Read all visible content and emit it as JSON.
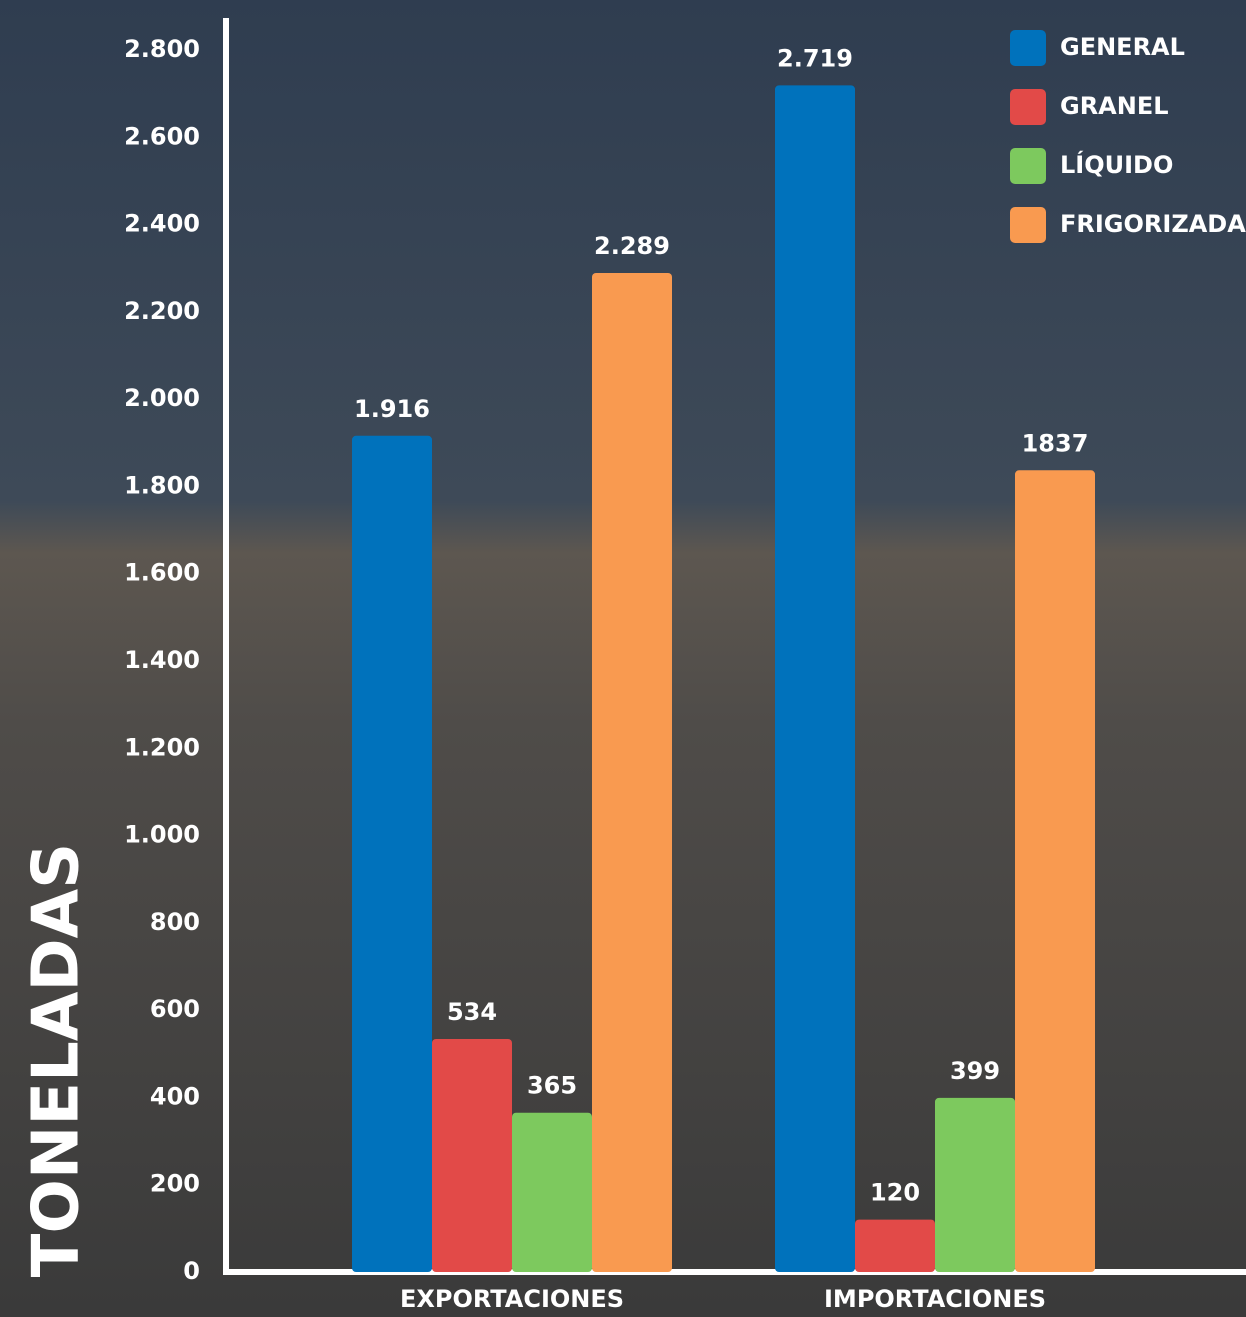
{
  "chart_data": {
    "type": "bar",
    "ylabel": "TONELADAS",
    "categories": [
      "EXPORTACIONES",
      "IMPORTACIONES"
    ],
    "series": [
      {
        "name": "GENERAL",
        "color": "#0072bc",
        "values": [
          1916,
          2719
        ],
        "value_labels": [
          "1.916",
          "2.719"
        ]
      },
      {
        "name": "GRANEL",
        "color": "#e24a48",
        "values": [
          534,
          120
        ],
        "value_labels": [
          "534",
          "120"
        ]
      },
      {
        "name": "LÍQUIDO",
        "color": "#7dc95e",
        "values": [
          365,
          399
        ],
        "value_labels": [
          "365",
          "399"
        ]
      },
      {
        "name": "FRIGORIZADA",
        "color": "#f99a50",
        "values": [
          2289,
          1837
        ],
        "value_labels": [
          "2.289",
          "1837"
        ]
      }
    ],
    "ylim": [
      0,
      2800
    ],
    "yticks": [
      0,
      200,
      400,
      600,
      800,
      {
        "value": 1000,
        "label": "1.000"
      },
      {
        "value": 1200,
        "label": "1.200"
      },
      {
        "value": 1400,
        "label": "1.400"
      },
      {
        "value": 1600,
        "label": "1.600"
      },
      {
        "value": 1800,
        "label": "1.800"
      },
      {
        "value": 2000,
        "label": "2.000"
      },
      {
        "value": 2200,
        "label": "2.200"
      },
      {
        "value": 2400,
        "label": "2.400"
      },
      {
        "value": 2600,
        "label": "2.600"
      },
      {
        "value": 2800,
        "label": "2.800"
      }
    ],
    "legend": "top-right",
    "grid": false
  }
}
